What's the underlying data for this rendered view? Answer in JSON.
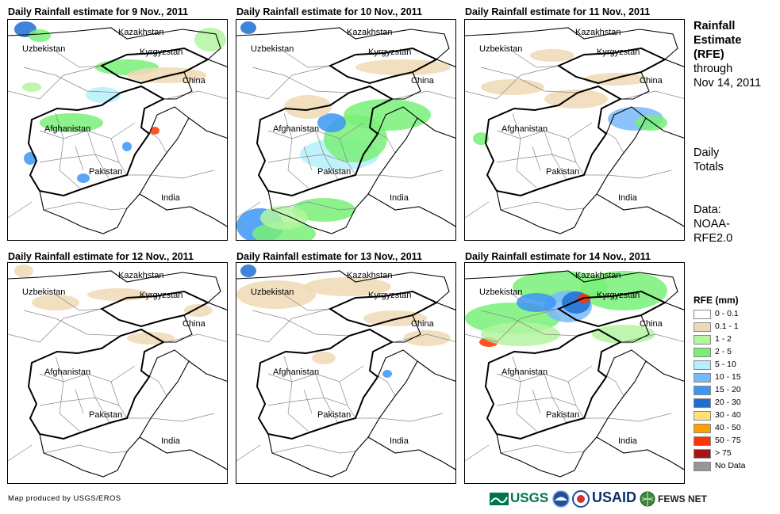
{
  "panels": [
    {
      "title": "Daily Rainfall estimate for 9 Nov., 2011"
    },
    {
      "title": "Daily Rainfall estimate for 10 Nov., 2011"
    },
    {
      "title": "Daily Rainfall estimate for 11 Nov., 2011"
    },
    {
      "title": "Daily Rainfall estimate for 12 Nov., 2011"
    },
    {
      "title": "Daily Rainfall estimate for 13 Nov., 2011"
    },
    {
      "title": "Daily Rainfall estimate for 14 Nov., 2011"
    }
  ],
  "map_labels": {
    "kazakhstan": "Kazakhstan",
    "uzbekistan": "Uzbekistan",
    "kyrgyzstan": "Kyrgyzstan",
    "china": "China",
    "afghanistan": "Afghanistan",
    "pakistan": "Pakistan",
    "india": "India"
  },
  "sidebar": {
    "title_line1": "Rainfall",
    "title_line2": "Estimate",
    "title_line3": "(RFE)",
    "title_line4": "through",
    "title_line5": "Nov 14, 2011",
    "daily_line1": "Daily",
    "daily_line2": "Totals",
    "data_line1": "Data:",
    "data_line2": "NOAA-",
    "data_line3": "RFE2.0"
  },
  "legend": {
    "title": "RFE (mm)",
    "items": [
      {
        "label": "0 - 0.1",
        "color": "#ffffff"
      },
      {
        "label": "0.1 - 1",
        "color": "#efd9b4"
      },
      {
        "label": "1 - 2",
        "color": "#b4f5a0"
      },
      {
        "label": "2 - 5",
        "color": "#78f078"
      },
      {
        "label": "5 - 10",
        "color": "#b4f0fa"
      },
      {
        "label": "10 - 15",
        "color": "#78b9fa"
      },
      {
        "label": "15 - 20",
        "color": "#3c96f5"
      },
      {
        "label": "20 - 30",
        "color": "#1e6ed2"
      },
      {
        "label": "30 - 40",
        "color": "#ffe178"
      },
      {
        "label": "40 - 50",
        "color": "#ffa000"
      },
      {
        "label": "50 - 75",
        "color": "#ff3200"
      },
      {
        "label": "> 75",
        "color": "#a51414"
      },
      {
        "label": "No Data",
        "color": "#969696"
      }
    ]
  },
  "footer": {
    "credit": "Map produced by USGS/EROS",
    "logo_usgs": "USGS",
    "logo_usaid": "USAID",
    "logo_fewsnet": "FEWS NET"
  }
}
